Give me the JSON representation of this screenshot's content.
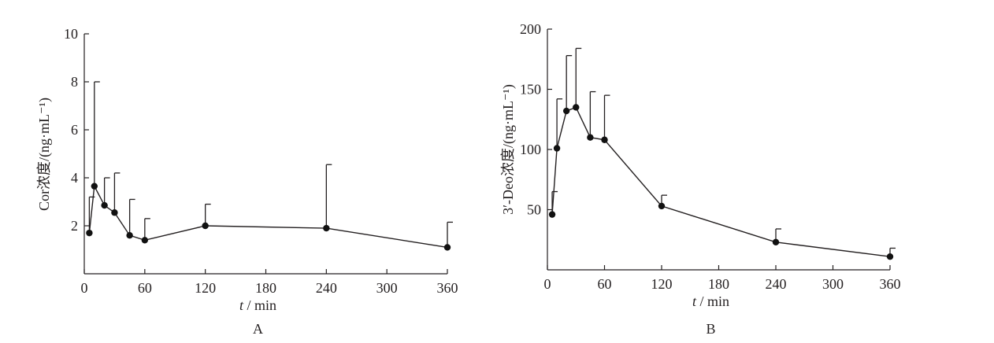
{
  "chart_data": [
    {
      "type": "line",
      "panel_label": "A",
      "xlabel_italic": "t",
      "xlabel_rest": " / min",
      "ylabel": "Cor浓度/(ng·mL⁻¹)",
      "xlim": [
        0,
        360
      ],
      "ylim": [
        0,
        10
      ],
      "xticks": [
        0,
        60,
        120,
        180,
        240,
        300,
        360
      ],
      "yticks": [
        2,
        4,
        6,
        8,
        10
      ],
      "grid": false,
      "x": [
        5,
        10,
        20,
        30,
        45,
        60,
        120,
        240,
        360
      ],
      "y": [
        1.7,
        3.65,
        2.85,
        2.55,
        1.6,
        1.4,
        2.0,
        1.9,
        1.1
      ],
      "error_upper": [
        3.2,
        8.0,
        4.0,
        4.2,
        3.1,
        2.3,
        2.9,
        4.55,
        2.15
      ]
    },
    {
      "type": "line",
      "panel_label": "B",
      "xlabel_italic": "t",
      "xlabel_rest": " / min",
      "ylabel": "3′-Deo浓度/(ng·mL⁻¹)",
      "xlim": [
        0,
        360
      ],
      "ylim": [
        0,
        200
      ],
      "xticks": [
        0,
        60,
        120,
        180,
        240,
        300,
        360
      ],
      "yticks": [
        50,
        100,
        150,
        200
      ],
      "grid": false,
      "x": [
        5,
        10,
        20,
        30,
        45,
        60,
        120,
        240,
        360
      ],
      "y": [
        46,
        101,
        132,
        135,
        110,
        108,
        53,
        23,
        11
      ],
      "error_upper": [
        65,
        142,
        178,
        184,
        148,
        145,
        62,
        34,
        18
      ]
    }
  ]
}
